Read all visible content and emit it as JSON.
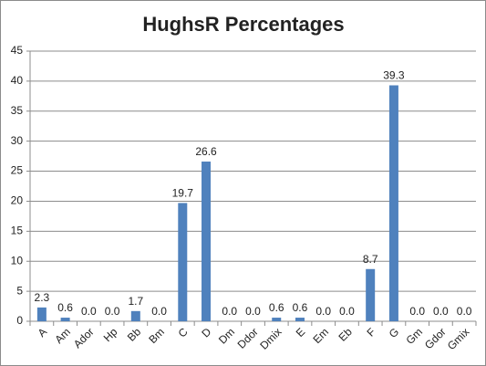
{
  "chart_data": {
    "type": "bar",
    "title": "HughsR Percentages",
    "categories": [
      "A",
      "Am",
      "Ador",
      "Hp",
      "Bb",
      "Bm",
      "C",
      "D",
      "Dm",
      "Ddor",
      "Dmix",
      "E",
      "Em",
      "Eb",
      "F",
      "G",
      "Gm",
      "Gdor",
      "Gmix"
    ],
    "values": [
      2.3,
      0.6,
      0,
      0,
      1.7,
      0,
      19.7,
      26.6,
      0,
      0,
      0.6,
      0.6,
      0,
      0,
      8.7,
      39.3,
      0,
      0,
      0
    ],
    "value_labels": [
      "2.3",
      "0.6",
      "0.0",
      "0.0",
      "1.7",
      "0.0",
      "19.7",
      "26.6",
      "0.0",
      "0.0",
      "0.6",
      "0.6",
      "0.0",
      "0.0",
      "8.7",
      "39.3",
      "0.0",
      "0.0",
      "0.0"
    ],
    "color": "#4f81bd",
    "ylim": [
      0,
      45
    ],
    "yticks": [
      0,
      5,
      10,
      15,
      20,
      25,
      30,
      35,
      40,
      45
    ],
    "grid": true
  }
}
